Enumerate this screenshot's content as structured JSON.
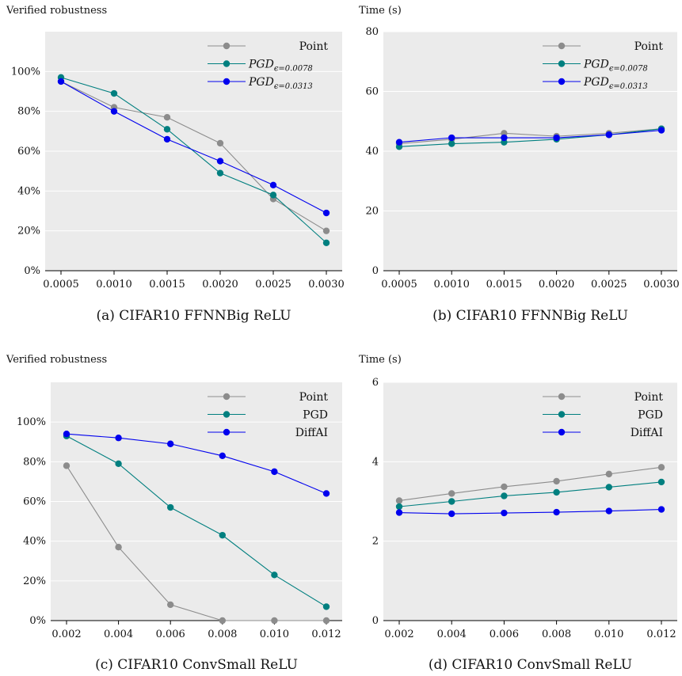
{
  "chart_data": [
    {
      "type": "line",
      "ylabel": "Verified robustness",
      "caption": "(a) CIFAR10 FFNNBig ReLU",
      "x": [
        0.0005,
        0.001,
        0.0015,
        0.002,
        0.0025,
        0.003
      ],
      "x_ticks": [
        "0.0005",
        "0.0010",
        "0.0015",
        "0.0020",
        "0.0025",
        "0.0030"
      ],
      "y_ticks": [
        "0%",
        "20%",
        "40%",
        "60%",
        "80%",
        "100%"
      ],
      "y_tick_values": [
        0,
        20,
        40,
        60,
        80,
        100
      ],
      "ylim": [
        0,
        120
      ],
      "legend_position": "top-right",
      "series": [
        {
          "name": "Point",
          "color": "#8c8c8c",
          "values": [
            95,
            82,
            77,
            64,
            36,
            20
          ]
        },
        {
          "name": "PGD",
          "name_sub": "ϵ=0.0078",
          "color": "#007f7f",
          "values": [
            97,
            89,
            71,
            49,
            38,
            14
          ]
        },
        {
          "name": "PGD",
          "name_sub": "ϵ=0.0313",
          "color": "#0000ee",
          "values": [
            95,
            80,
            66,
            55,
            43,
            29
          ]
        }
      ]
    },
    {
      "type": "line",
      "ylabel": "Time (s)",
      "caption": "(b) CIFAR10 FFNNBig ReLU",
      "x": [
        0.0005,
        0.001,
        0.0015,
        0.002,
        0.0025,
        0.003
      ],
      "x_ticks": [
        "0.0005",
        "0.0010",
        "0.0015",
        "0.0020",
        "0.0025",
        "0.0030"
      ],
      "y_ticks": [
        "0",
        "20",
        "40",
        "60",
        "80"
      ],
      "y_tick_values": [
        0,
        20,
        40,
        60,
        80
      ],
      "ylim": [
        0,
        80
      ],
      "legend_position": "top-right",
      "series": [
        {
          "name": "Point",
          "color": "#8c8c8c",
          "values": [
            42.5,
            44.0,
            46.0,
            45.0,
            46.0,
            47.5
          ]
        },
        {
          "name": "PGD",
          "name_sub": "ϵ=0.0078",
          "color": "#007f7f",
          "values": [
            41.5,
            42.5,
            43.0,
            44.0,
            45.5,
            47.5
          ]
        },
        {
          "name": "PGD",
          "name_sub": "ϵ=0.0313",
          "color": "#0000ee",
          "values": [
            43.0,
            44.5,
            44.5,
            44.5,
            45.5,
            47.0
          ]
        }
      ]
    },
    {
      "type": "line",
      "ylabel": "Verified robustness",
      "caption": "(c) CIFAR10 ConvSmall ReLU",
      "x": [
        0.002,
        0.004,
        0.006,
        0.008,
        0.01,
        0.012
      ],
      "x_ticks": [
        "0.002",
        "0.004",
        "0.006",
        "0.008",
        "0.010",
        "0.012"
      ],
      "y_ticks": [
        "0%",
        "20%",
        "40%",
        "60%",
        "80%",
        "100%"
      ],
      "y_tick_values": [
        0,
        20,
        40,
        60,
        80,
        100
      ],
      "ylim": [
        0,
        120
      ],
      "legend_position": "top-right",
      "series": [
        {
          "name": "Point",
          "color": "#8c8c8c",
          "values": [
            78,
            37,
            8,
            0,
            0,
            0
          ]
        },
        {
          "name": "PGD",
          "color": "#007f7f",
          "values": [
            93,
            79,
            57,
            43,
            23,
            7
          ]
        },
        {
          "name": "DiffAI",
          "color": "#0000ee",
          "values": [
            94,
            92,
            89,
            83,
            75,
            64
          ]
        }
      ]
    },
    {
      "type": "line",
      "ylabel": "Time (s)",
      "caption": "(d) CIFAR10 ConvSmall ReLU",
      "x": [
        0.002,
        0.004,
        0.006,
        0.008,
        0.01,
        0.012
      ],
      "x_ticks": [
        "0.002",
        "0.004",
        "0.006",
        "0.008",
        "0.010",
        "0.012"
      ],
      "y_ticks": [
        "0",
        "2",
        "4",
        "6"
      ],
      "y_tick_values": [
        0,
        2,
        4,
        6
      ],
      "ylim": [
        0,
        6
      ],
      "legend_position": "top-right",
      "series": [
        {
          "name": "Point",
          "color": "#8c8c8c",
          "values": [
            3.02,
            3.2,
            3.37,
            3.51,
            3.69,
            3.86
          ]
        },
        {
          "name": "PGD",
          "color": "#007f7f",
          "values": [
            2.87,
            3.0,
            3.14,
            3.23,
            3.36,
            3.49
          ]
        },
        {
          "name": "DiffAI",
          "color": "#0000ee",
          "values": [
            2.72,
            2.69,
            2.71,
            2.73,
            2.76,
            2.8
          ]
        }
      ]
    }
  ]
}
